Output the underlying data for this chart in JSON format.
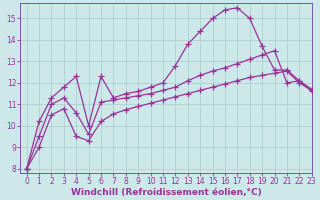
{
  "line3_x": [
    0,
    1,
    2,
    3,
    4,
    5,
    6,
    7,
    8,
    9,
    10,
    11,
    12,
    13,
    14,
    15,
    16,
    17,
    18,
    19,
    20,
    21,
    22,
    23
  ],
  "line3_y": [
    8.0,
    10.2,
    11.3,
    11.8,
    12.3,
    10.0,
    12.3,
    11.3,
    11.5,
    11.6,
    11.8,
    12.0,
    12.8,
    13.8,
    14.4,
    15.0,
    15.4,
    15.5,
    15.0,
    13.7,
    12.6,
    12.6,
    12.1,
    11.6
  ],
  "line2_x": [
    0,
    1,
    2,
    3,
    4,
    5,
    6,
    7,
    8,
    9,
    10,
    11,
    12,
    13,
    14,
    15,
    16,
    17,
    18,
    19,
    20,
    21,
    22,
    23
  ],
  "line2_y": [
    8.0,
    9.5,
    11.0,
    11.3,
    10.6,
    9.6,
    11.1,
    11.2,
    11.3,
    11.4,
    11.5,
    11.65,
    11.8,
    12.1,
    12.35,
    12.55,
    12.7,
    12.9,
    13.1,
    13.3,
    13.5,
    12.0,
    12.1,
    11.7
  ],
  "line1_x": [
    0,
    1,
    2,
    3,
    4,
    5,
    6,
    7,
    8,
    9,
    10,
    11,
    12,
    13,
    14,
    15,
    16,
    17,
    18,
    19,
    20,
    21,
    22,
    23
  ],
  "line1_y": [
    8.0,
    9.0,
    10.5,
    10.8,
    9.5,
    9.3,
    10.2,
    10.55,
    10.75,
    10.9,
    11.05,
    11.2,
    11.35,
    11.5,
    11.65,
    11.8,
    11.95,
    12.1,
    12.25,
    12.35,
    12.45,
    12.55,
    12.0,
    11.65
  ],
  "line_color": "#993399",
  "bg_color": "#cce8e8",
  "grid_color": "#aacccc",
  "xlabel": "Windchill (Refroidissement éolien,°C)",
  "xlim": [
    -0.5,
    23
  ],
  "ylim": [
    7.8,
    15.7
  ],
  "yticks": [
    8,
    9,
    10,
    11,
    12,
    13,
    14,
    15
  ],
  "xticks": [
    0,
    1,
    2,
    3,
    4,
    5,
    6,
    7,
    8,
    9,
    10,
    11,
    12,
    13,
    14,
    15,
    16,
    17,
    18,
    19,
    20,
    21,
    22,
    23
  ],
  "marker": "+",
  "markersize": 4,
  "linewidth": 0.9,
  "xlabel_fontsize": 6.5,
  "tick_fontsize": 5.5,
  "spine_color": "#7755aa"
}
